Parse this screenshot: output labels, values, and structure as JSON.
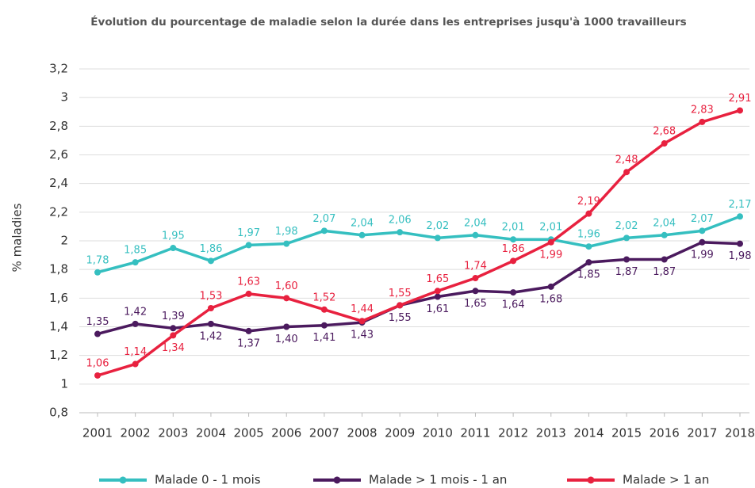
{
  "chart_data": {
    "type": "line",
    "title": "Évolution du pourcentage de maladie selon la durée dans les entreprises jusqu'à 1000 travailleurs",
    "y_label": "% maladies",
    "categories": [
      "2001",
      "2002",
      "2003",
      "2004",
      "2005",
      "2006",
      "2007",
      "2008",
      "2009",
      "2010",
      "2011",
      "2012",
      "2013",
      "2014",
      "2015",
      "2016",
      "2017",
      "2018"
    ],
    "ylim": [
      0.8,
      3.2
    ],
    "yticks": [
      {
        "value": 0.8,
        "label": "0,8"
      },
      1,
      {
        "value": 1.2,
        "label": "1,2"
      },
      {
        "value": 1.4,
        "label": "1,4"
      },
      {
        "value": 1.6,
        "label": "1,6"
      },
      {
        "value": 1.8,
        "label": "1,8"
      },
      2,
      {
        "value": 2.2,
        "label": "2,2"
      },
      {
        "value": 2.4,
        "label": "2,4"
      },
      {
        "value": 2.6,
        "label": "2,6"
      },
      {
        "value": 2.8,
        "label": "2,8"
      },
      3,
      {
        "value": 3.2,
        "label": "3,2"
      }
    ],
    "grid": true,
    "legend": "bottom",
    "series": [
      {
        "name": "Malade 0 - 1 mois",
        "color": "#35bfc0",
        "values": [
          1.78,
          1.85,
          1.95,
          1.86,
          1.97,
          1.98,
          2.07,
          2.04,
          2.06,
          2.02,
          2.04,
          2.01,
          2.01,
          1.96,
          2.02,
          2.04,
          2.07,
          2.17
        ],
        "value_labels": [
          "1,78",
          "1,85",
          "1,95",
          "1,86",
          "1,97",
          "1,98",
          "2,07",
          "2,04",
          "2,06",
          "2,02",
          "2,04",
          "2,01",
          "2,01",
          "1,96",
          "2,02",
          "2,04",
          "2,07",
          "2,17"
        ]
      },
      {
        "name": "Malade > 1 mois - 1 an",
        "color": "#4b1a5e",
        "values": [
          1.35,
          1.42,
          1.39,
          1.42,
          1.37,
          1.4,
          1.41,
          1.43,
          1.55,
          1.61,
          1.65,
          1.64,
          1.68,
          1.85,
          1.87,
          1.87,
          1.99,
          1.98
        ],
        "value_labels": [
          "1,35",
          "1,42",
          "1,39",
          "1,42",
          "1,37",
          "1,40",
          "1,41",
          "1,43",
          "1,55",
          "1,61",
          "1,65",
          "1,64",
          "1,68",
          "1,85",
          "1,87",
          "1,87",
          "1,99",
          "1,98"
        ]
      },
      {
        "name": "Malade > 1 an",
        "color": "#e8213f",
        "values": [
          1.06,
          1.14,
          1.34,
          1.53,
          1.63,
          1.6,
          1.52,
          1.44,
          1.55,
          1.65,
          1.74,
          1.86,
          1.99,
          2.19,
          2.48,
          2.68,
          2.83,
          2.91
        ],
        "value_labels": [
          "1,06",
          "1,14",
          "1,34",
          "1,53",
          "1,63",
          "1,60",
          "1,52",
          "1,44",
          "1,55",
          "1,65",
          "1,74",
          "1,86",
          "1,99",
          "2,19",
          "2,48",
          "2,68",
          "2,83",
          "2,91"
        ]
      }
    ]
  }
}
